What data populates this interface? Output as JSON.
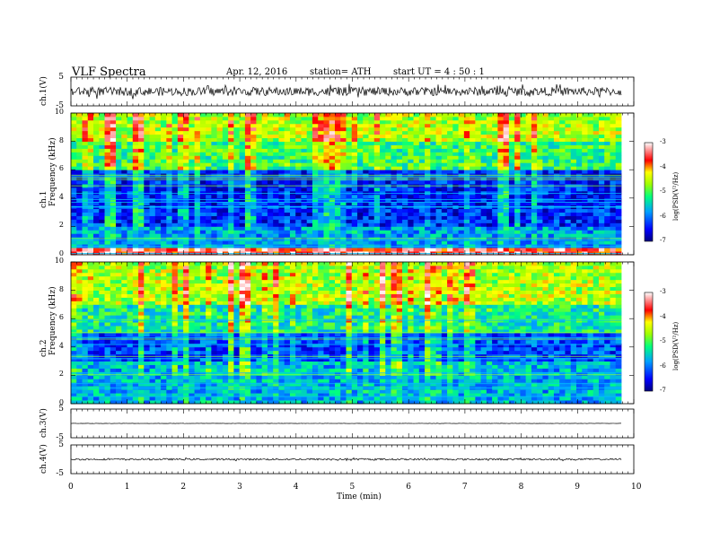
{
  "header": {
    "title": "VLF  Spectra",
    "date": "Apr. 12, 2016",
    "station": "station= ATH",
    "start": "start  UT =   4  : 50 : 1"
  },
  "chart_data": [
    {
      "type": "line",
      "panel": "ch1-waveform",
      "ylabel": "ch.1(V)",
      "ylim": [
        -5,
        5
      ],
      "yticks": [
        "5",
        "-5"
      ],
      "trace_level_V": 0,
      "trace_amplitude_V": 1.5,
      "color": "#000000"
    },
    {
      "type": "heatmap",
      "panel": "ch1-spectrogram",
      "ylabel": "ch.1\nFrequency  (kHz)",
      "ylim": [
        0,
        10
      ],
      "yticks": [
        "0",
        "2",
        "4",
        "6",
        "8",
        "10"
      ],
      "xlim": [
        0,
        9.8
      ],
      "colorbar": {
        "label": "log(PSD(V²/Hz)",
        "range": [
          -7,
          -3
        ],
        "ticks": [
          "-3",
          "-4",
          "-5",
          "-6",
          "-7"
        ]
      },
      "bands_kHz": [
        {
          "from": 0,
          "to": 0.5,
          "logPSD": -3.5
        },
        {
          "from": 0.5,
          "to": 2,
          "logPSD": -5.8
        },
        {
          "from": 2,
          "to": 6,
          "logPSD": -6.4
        },
        {
          "from": 6,
          "to": 8,
          "logPSD": -5.1
        },
        {
          "from": 8,
          "to": 10,
          "logPSD": -4.6
        }
      ]
    },
    {
      "type": "heatmap",
      "panel": "ch2-spectrogram",
      "ylabel": "ch.2\nFrequency  (kHz)",
      "ylim": [
        0,
        10
      ],
      "yticks": [
        "0",
        "2",
        "4",
        "6",
        "8",
        "10"
      ],
      "xlim": [
        0,
        9.8
      ],
      "colorbar": {
        "label": "log(PSD(V²/Hz)",
        "range": [
          -7,
          -3
        ],
        "ticks": [
          "-3",
          "-4",
          "-5",
          "-6",
          "-7"
        ]
      },
      "bands_kHz": [
        {
          "from": 0,
          "to": 3,
          "logPSD": -5.7
        },
        {
          "from": 3,
          "to": 5,
          "logPSD": -6.2
        },
        {
          "from": 5,
          "to": 7,
          "logPSD": -5.3
        },
        {
          "from": 7,
          "to": 10,
          "logPSD": -4.6
        }
      ]
    },
    {
      "type": "line",
      "panel": "ch3-waveform",
      "ylabel": "ch.3(V)",
      "ylim": [
        -5,
        5
      ],
      "yticks": [
        "5",
        "-5"
      ],
      "trace_level_V": 0,
      "trace_amplitude_V": 0.05,
      "color": "#000000"
    },
    {
      "type": "line",
      "panel": "ch4-waveform",
      "ylabel": "ch.4(V)",
      "ylim": [
        -5,
        5
      ],
      "yticks": [
        "5",
        "-5"
      ],
      "trace_level_V": 0,
      "trace_amplitude_V": 0.3,
      "color": "#000000"
    }
  ],
  "xaxis": {
    "label": "Time  (min)",
    "xlim": [
      0,
      10
    ],
    "ticks": [
      "0",
      "1",
      "2",
      "3",
      "4",
      "5",
      "6",
      "7",
      "8",
      "9",
      "10"
    ]
  },
  "colors": {
    "jet_low": "#000080",
    "jet_high": "#ff0000",
    "colorbar_top": "#ffffff",
    "trace": "#000000"
  }
}
